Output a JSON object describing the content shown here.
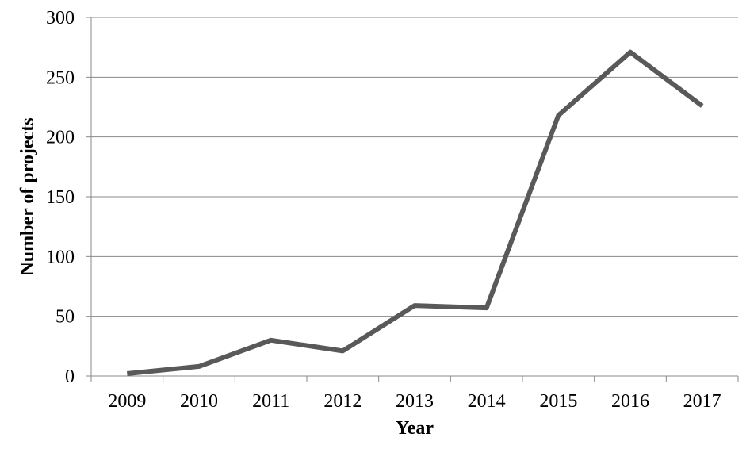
{
  "chart_data": {
    "type": "line",
    "title": "",
    "xlabel": "Year",
    "ylabel": "Number of projects",
    "categories": [
      "2009",
      "2010",
      "2011",
      "2012",
      "2013",
      "2014",
      "2015",
      "2016",
      "2017"
    ],
    "series": [
      {
        "values": [
          2,
          8,
          30,
          21,
          59,
          57,
          218,
          271,
          226
        ]
      }
    ],
    "ylim": [
      0,
      300
    ],
    "yticks": [
      0,
      50,
      100,
      150,
      200,
      250,
      300
    ],
    "grid": true,
    "legend": "none",
    "colors": {
      "line": "#595959",
      "grid": "#888888",
      "text": "#000000"
    }
  }
}
